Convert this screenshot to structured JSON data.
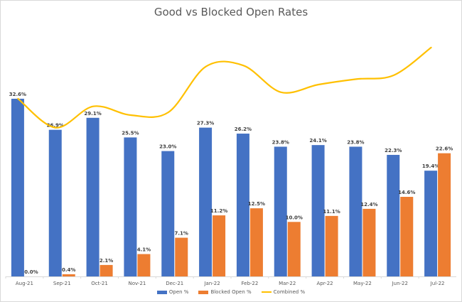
{
  "chart_data": {
    "type": "bar",
    "title": "Good vs Blocked Open Rates",
    "xlabel": "",
    "ylabel": "",
    "grid": false,
    "legend_position": "bottom",
    "categories": [
      "Aug-21",
      "Sep-21",
      "Oct-21",
      "Nov-21",
      "Dec-21",
      "Jan-22",
      "Feb-22",
      "Mar-22",
      "Apr-22",
      "May-22",
      "Jun-22",
      "Jul-22"
    ],
    "series": [
      {
        "name": "Open %",
        "type": "bar",
        "color": "#4472C4",
        "values": [
          32.6,
          26.9,
          29.1,
          25.5,
          23.0,
          27.3,
          26.2,
          23.8,
          24.1,
          23.8,
          22.3,
          19.4
        ],
        "labels": [
          "32.6%",
          "26.9%",
          "29.1%",
          "25.5%",
          "23.0%",
          "27.3%",
          "26.2%",
          "23.8%",
          "24.1%",
          "23.8%",
          "22.3%",
          "19.4%"
        ]
      },
      {
        "name": "Blocked Open %",
        "type": "bar",
        "color": "#ED7D31",
        "values": [
          0.0,
          0.4,
          2.1,
          4.1,
          7.1,
          11.2,
          12.5,
          10.0,
          11.1,
          12.4,
          14.6,
          22.6
        ],
        "labels": [
          "0.0%",
          "0.4%",
          "2.1%",
          "4.1%",
          "7.1%",
          "11.2%",
          "12.5%",
          "10.0%",
          "11.1%",
          "12.4%",
          "14.6%",
          "22.6%"
        ]
      },
      {
        "name": "Combined %",
        "type": "line",
        "color": "#FFC000",
        "smooth": true,
        "values": [
          32.6,
          27.3,
          31.2,
          29.6,
          30.1,
          38.5,
          38.7,
          33.8,
          35.2,
          36.2,
          36.9,
          42.0
        ]
      }
    ]
  },
  "legend": {
    "items": [
      {
        "label": "Open %",
        "color": "#4472C4"
      },
      {
        "label": "Blocked Open %",
        "color": "#ED7D31"
      },
      {
        "label": "Combined %",
        "color": "#FFC000"
      }
    ]
  }
}
